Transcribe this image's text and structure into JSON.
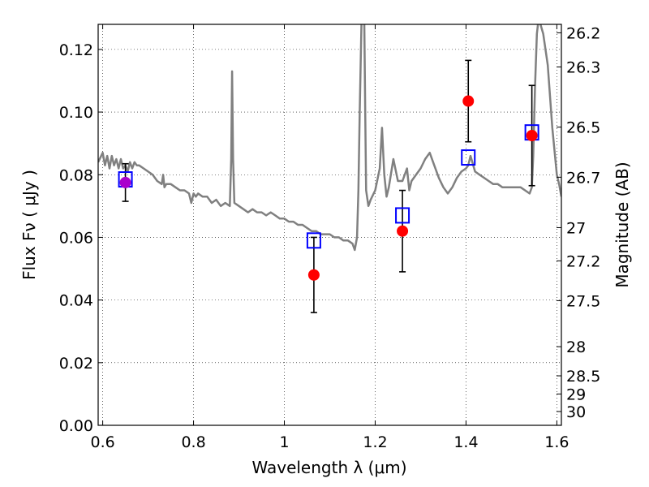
{
  "chart_data": {
    "type": "scatter",
    "xlabel": "Wavelength  λ (μm)",
    "ylabel": "Flux  Fν  ( μJy )",
    "ylabel_right": "Magnitude (AB)",
    "xlim": [
      0.59,
      1.61
    ],
    "ylim": [
      0.0,
      0.128
    ],
    "grid": true,
    "x_ticks": [
      0.6,
      0.8,
      1.0,
      1.2,
      1.4,
      1.6
    ],
    "x_tick_labels": [
      "0.6",
      "0.8",
      "1",
      "1.2",
      "1.4",
      "1.6"
    ],
    "y_ticks": [
      0.0,
      0.02,
      0.04,
      0.06,
      0.08,
      0.1,
      0.12
    ],
    "y_tick_labels": [
      "0.00",
      "0.02",
      "0.04",
      "0.06",
      "0.08",
      "0.10",
      "0.12"
    ],
    "right_tick_flux": [
      0.1253,
      0.1144,
      0.0952,
      0.0792,
      0.0631,
      0.0525,
      0.0398,
      0.0251,
      0.0158,
      0.01,
      0.0044
    ],
    "right_tick_labels": [
      "26.2",
      "26.3",
      "26.5",
      "26.7",
      "27",
      "27.2",
      "27.5",
      "28",
      "28.5",
      "29",
      "30"
    ],
    "colors": {
      "model": "#808080",
      "observed": "#ff0000",
      "synthetic": "#0000ff",
      "errorbar": "#000000",
      "overlap": "#aa00cc"
    },
    "series": [
      {
        "kind": "line",
        "x": [
          0.59,
          0.6,
          0.605,
          0.61,
          0.615,
          0.62,
          0.625,
          0.63,
          0.635,
          0.64,
          0.645,
          0.65,
          0.655,
          0.66,
          0.665,
          0.67,
          0.675,
          0.68,
          0.69,
          0.7,
          0.71,
          0.72,
          0.73,
          0.733,
          0.736,
          0.74,
          0.75,
          0.76,
          0.77,
          0.78,
          0.79,
          0.795,
          0.8,
          0.805,
          0.81,
          0.82,
          0.83,
          0.84,
          0.85,
          0.86,
          0.87,
          0.88,
          0.883,
          0.885,
          0.887,
          0.89,
          0.9,
          0.91,
          0.92,
          0.93,
          0.94,
          0.95,
          0.96,
          0.97,
          0.98,
          0.99,
          1.0,
          1.01,
          1.02,
          1.03,
          1.04,
          1.05,
          1.06,
          1.07,
          1.08,
          1.09,
          1.1,
          1.11,
          1.12,
          1.13,
          1.14,
          1.15,
          1.155,
          1.16,
          1.163,
          1.166,
          1.17,
          1.173,
          1.176,
          1.178,
          1.18,
          1.185,
          1.19,
          1.2,
          1.21,
          1.215,
          1.22,
          1.225,
          1.23,
          1.24,
          1.25,
          1.26,
          1.27,
          1.275,
          1.28,
          1.285,
          1.29,
          1.3,
          1.31,
          1.32,
          1.33,
          1.34,
          1.35,
          1.36,
          1.37,
          1.38,
          1.39,
          1.4,
          1.405,
          1.41,
          1.42,
          1.43,
          1.44,
          1.45,
          1.46,
          1.47,
          1.48,
          1.49,
          1.5,
          1.51,
          1.52,
          1.53,
          1.54,
          1.545,
          1.548,
          1.552,
          1.556,
          1.56,
          1.57,
          1.58,
          1.59,
          1.6,
          1.605,
          1.61
        ],
        "y": [
          0.084,
          0.087,
          0.083,
          0.086,
          0.082,
          0.086,
          0.083,
          0.085,
          0.082,
          0.085,
          0.082,
          0.083,
          0.081,
          0.084,
          0.082,
          0.084,
          0.083,
          0.083,
          0.082,
          0.081,
          0.08,
          0.078,
          0.077,
          0.08,
          0.076,
          0.077,
          0.077,
          0.076,
          0.075,
          0.075,
          0.074,
          0.071,
          0.074,
          0.073,
          0.074,
          0.073,
          0.073,
          0.071,
          0.072,
          0.07,
          0.071,
          0.07,
          0.085,
          0.113,
          0.085,
          0.071,
          0.07,
          0.069,
          0.068,
          0.069,
          0.068,
          0.068,
          0.067,
          0.068,
          0.067,
          0.066,
          0.066,
          0.065,
          0.065,
          0.064,
          0.064,
          0.063,
          0.062,
          0.062,
          0.061,
          0.061,
          0.061,
          0.06,
          0.06,
          0.059,
          0.059,
          0.058,
          0.056,
          0.06,
          0.075,
          0.1,
          0.13,
          0.13,
          0.13,
          0.1,
          0.075,
          0.07,
          0.072,
          0.075,
          0.082,
          0.095,
          0.08,
          0.073,
          0.076,
          0.085,
          0.078,
          0.078,
          0.082,
          0.075,
          0.078,
          0.079,
          0.08,
          0.082,
          0.085,
          0.087,
          0.083,
          0.079,
          0.076,
          0.074,
          0.076,
          0.079,
          0.081,
          0.082,
          0.083,
          0.086,
          0.081,
          0.08,
          0.079,
          0.078,
          0.077,
          0.077,
          0.076,
          0.076,
          0.076,
          0.076,
          0.076,
          0.075,
          0.074,
          0.076,
          0.086,
          0.108,
          0.125,
          0.13,
          0.125,
          0.115,
          0.095,
          0.08,
          0.077,
          0.073
        ]
      },
      {
        "kind": "points",
        "marker": "circle",
        "x": [
          0.65,
          1.065,
          1.26,
          1.405,
          1.545
        ],
        "y": [
          0.0775,
          0.048,
          0.062,
          0.1035,
          0.0925
        ],
        "yerr": [
          0.006,
          0.012,
          0.013,
          0.013,
          0.016
        ]
      },
      {
        "kind": "points",
        "marker": "open-square",
        "x": [
          0.65,
          1.065,
          1.26,
          1.405,
          1.545
        ],
        "y": [
          0.0785,
          0.059,
          0.067,
          0.0855,
          0.0935
        ]
      }
    ]
  }
}
